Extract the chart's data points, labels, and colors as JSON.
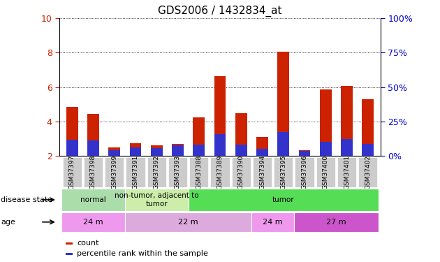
{
  "title": "GDS2006 / 1432834_at",
  "samples": [
    "GSM37397",
    "GSM37398",
    "GSM37399",
    "GSM37391",
    "GSM37392",
    "GSM37393",
    "GSM37388",
    "GSM37389",
    "GSM37390",
    "GSM37394",
    "GSM37395",
    "GSM37396",
    "GSM37400",
    "GSM37401",
    "GSM37402"
  ],
  "red_values": [
    4.85,
    4.45,
    2.5,
    2.75,
    2.6,
    2.7,
    4.25,
    6.65,
    4.5,
    3.1,
    8.05,
    2.35,
    5.85,
    6.05,
    5.3
  ],
  "blue_values": [
    2.95,
    2.9,
    2.35,
    2.5,
    2.45,
    2.6,
    2.65,
    3.25,
    2.65,
    2.4,
    3.4,
    2.3,
    2.8,
    3.0,
    2.7
  ],
  "bar_bottom": 2.0,
  "ylim_left": [
    2.0,
    10.0
  ],
  "ylim_right": [
    0,
    100
  ],
  "right_ticks": [
    0,
    25,
    50,
    75,
    100
  ],
  "left_ticks": [
    2,
    4,
    6,
    8,
    10
  ],
  "right_tick_labels": [
    "0%",
    "25%",
    "50%",
    "75%",
    "100%"
  ],
  "bar_color_red": "#cc2200",
  "bar_color_blue": "#3333cc",
  "bar_width": 0.55,
  "bg_color": "#ffffff",
  "disease_state_groups": [
    {
      "label": "normal",
      "start": 0,
      "end": 3,
      "color": "#aaddaa"
    },
    {
      "label": "non-tumor, adjacent to\ntumor",
      "start": 3,
      "end": 6,
      "color": "#cceeaa"
    },
    {
      "label": "tumor",
      "start": 6,
      "end": 15,
      "color": "#55dd55"
    }
  ],
  "age_groups": [
    {
      "label": "24 m",
      "start": 0,
      "end": 3,
      "color": "#ee99ee"
    },
    {
      "label": "22 m",
      "start": 3,
      "end": 9,
      "color": "#ddaadd"
    },
    {
      "label": "24 m",
      "start": 9,
      "end": 11,
      "color": "#ee99ee"
    },
    {
      "label": "27 m",
      "start": 11,
      "end": 15,
      "color": "#cc55cc"
    }
  ],
  "legend_count_color": "#cc2200",
  "legend_pct_color": "#3333cc",
  "left_tick_color": "#cc2200",
  "right_tick_color": "#0000cc",
  "label_fontsize": 8,
  "tick_fontsize": 9,
  "bar_label_fontsize": 6.5
}
